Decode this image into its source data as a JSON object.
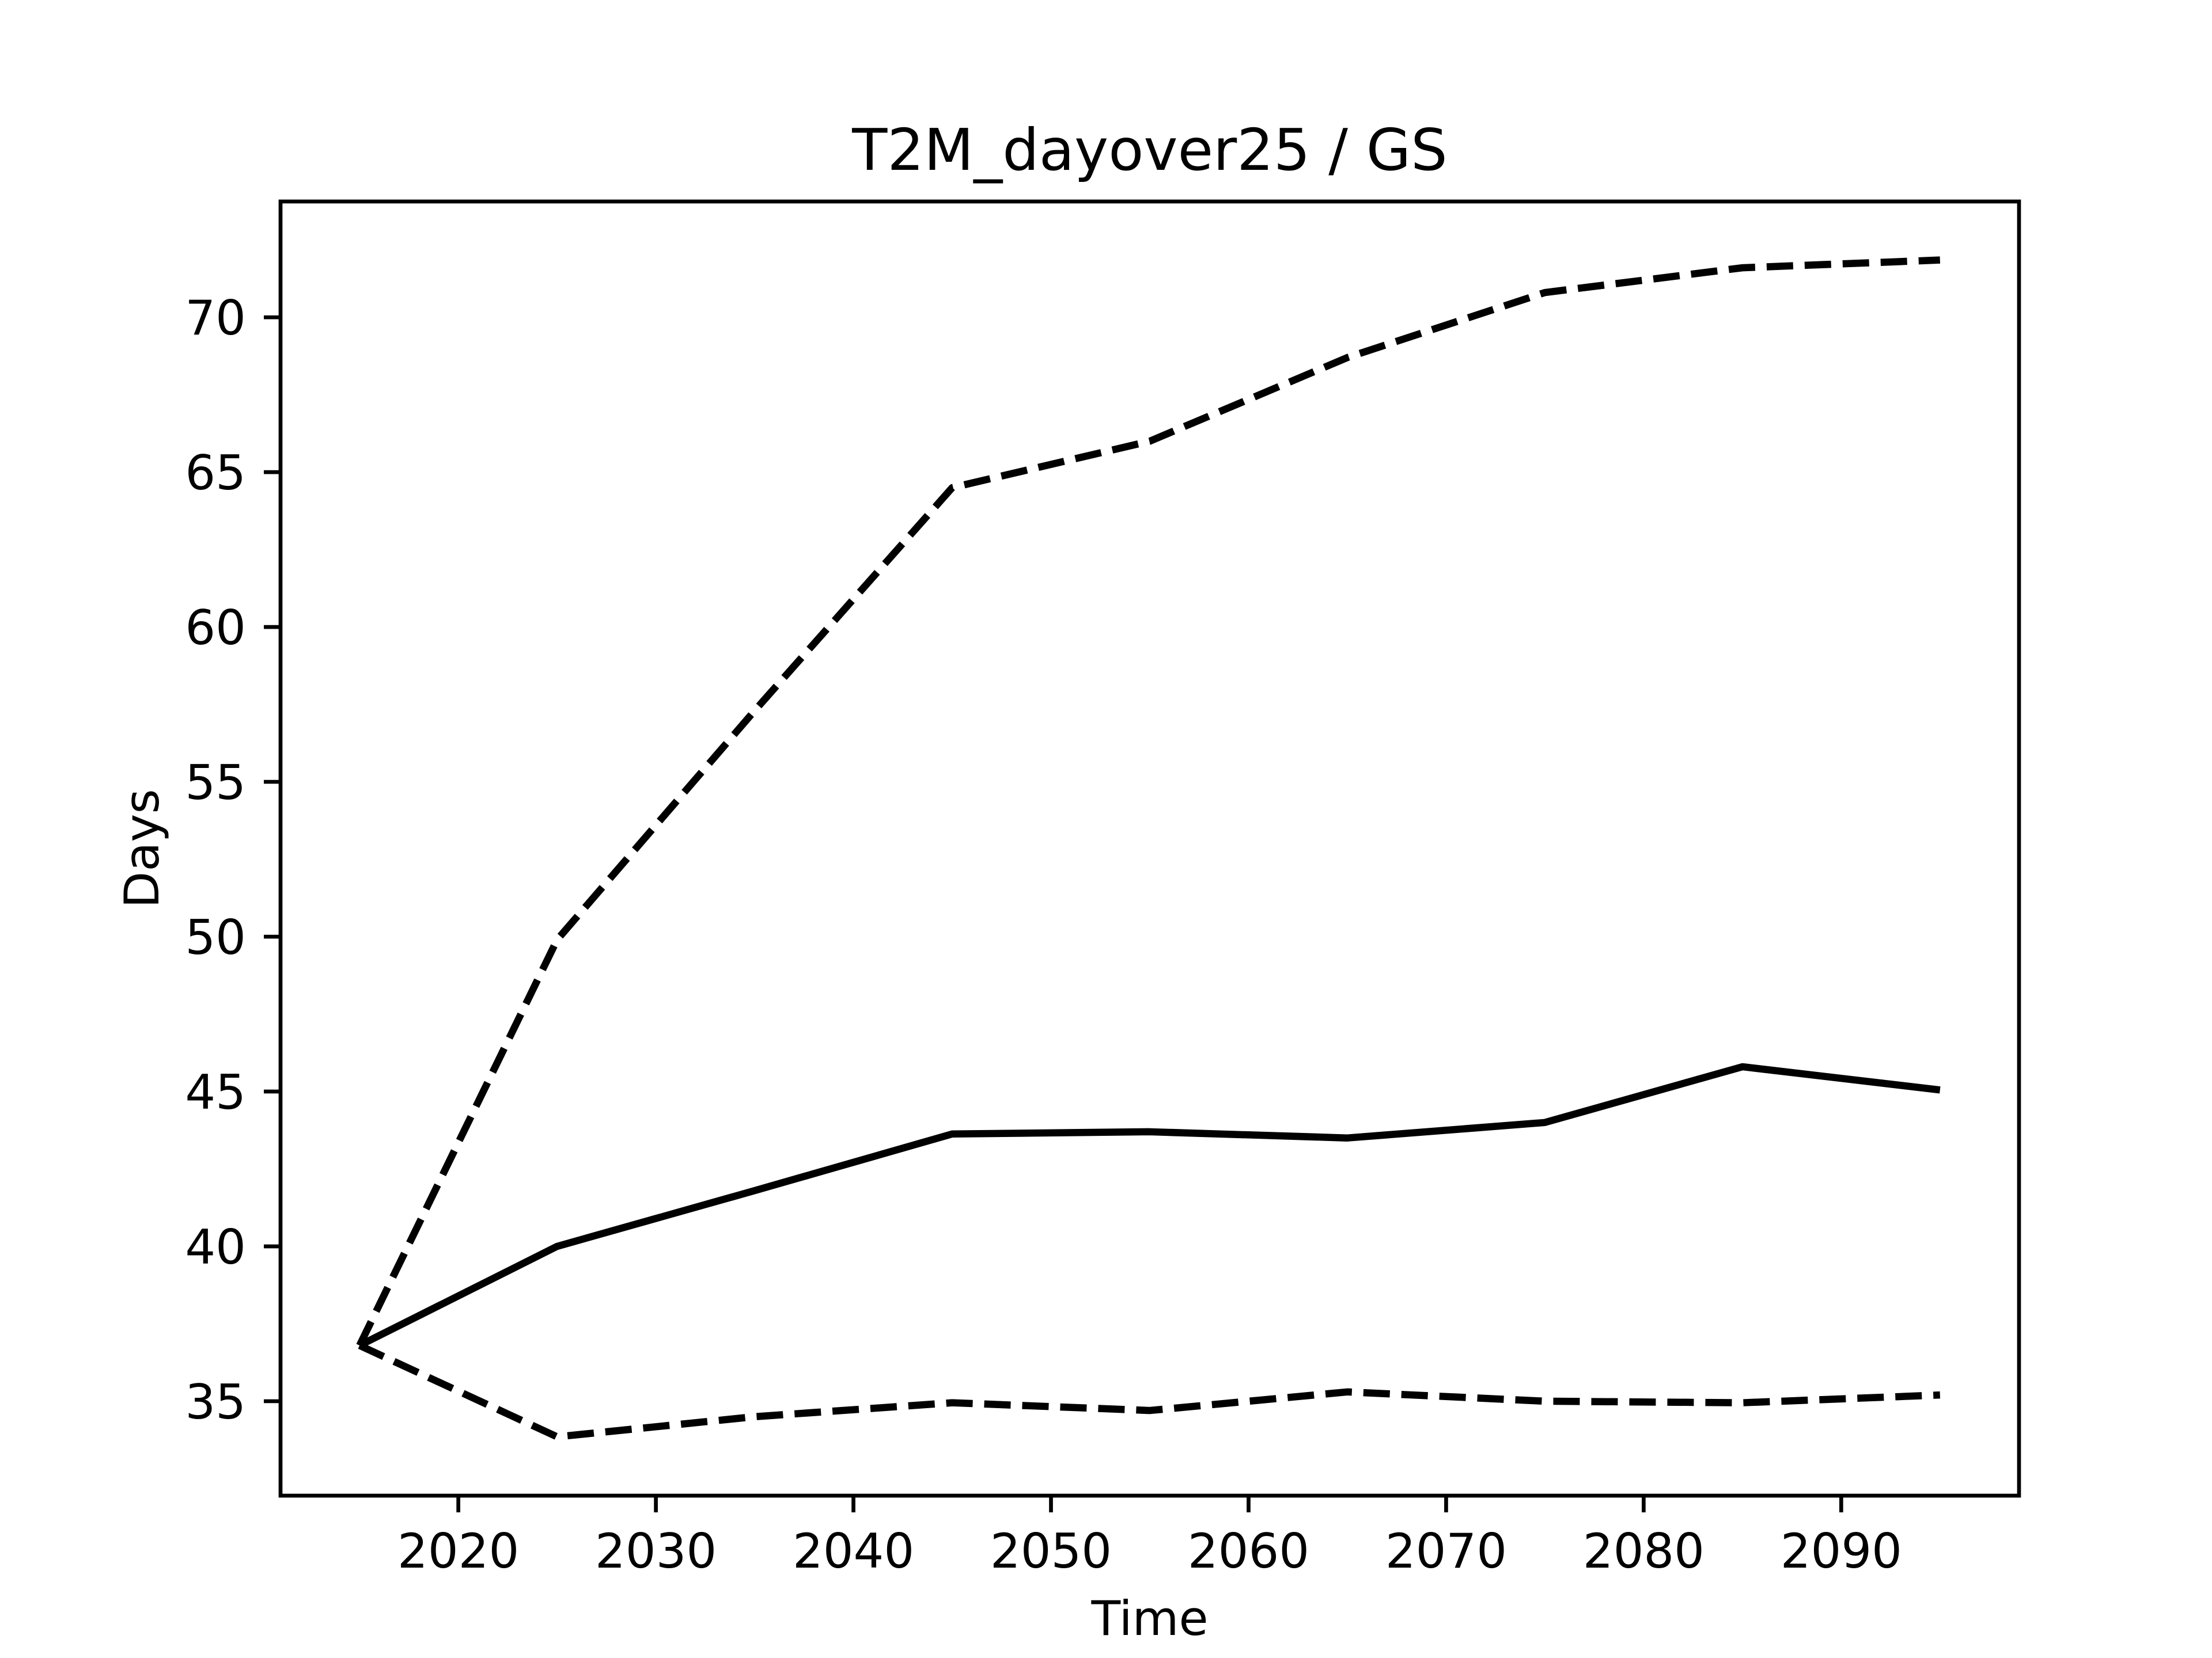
{
  "chart_data": {
    "type": "line",
    "title": "T2M_dayover25 / GS",
    "xlabel": "Time",
    "ylabel": "Days",
    "x": [
      2015,
      2025,
      2035,
      2045,
      2055,
      2065,
      2075,
      2085,
      2095
    ],
    "series": [
      {
        "color": "#000000",
        "linestyle": "solid",
        "values": [
          36.8,
          40.0,
          41.8,
          43.63,
          43.7,
          43.5,
          44.0,
          45.8,
          45.05
        ]
      },
      {
        "color": "#000000",
        "linestyle": "dashed",
        "values": [
          36.8,
          49.9,
          57.3,
          64.5,
          66.0,
          68.7,
          70.8,
          71.6,
          71.85
        ]
      },
      {
        "color": "#000000",
        "linestyle": "dashed",
        "values": [
          36.8,
          33.85,
          34.5,
          34.95,
          34.7,
          35.3,
          35.0,
          34.95,
          35.2
        ]
      }
    ],
    "xlim": [
      2011,
      2099
    ],
    "xticks": [
      2020,
      2030,
      2040,
      2050,
      2060,
      2070,
      2080,
      2090
    ],
    "ylim": [
      31.95,
      73.74
    ],
    "yticks": [
      35,
      40,
      45,
      50,
      55,
      60,
      65,
      70
    ],
    "grid": false
  }
}
